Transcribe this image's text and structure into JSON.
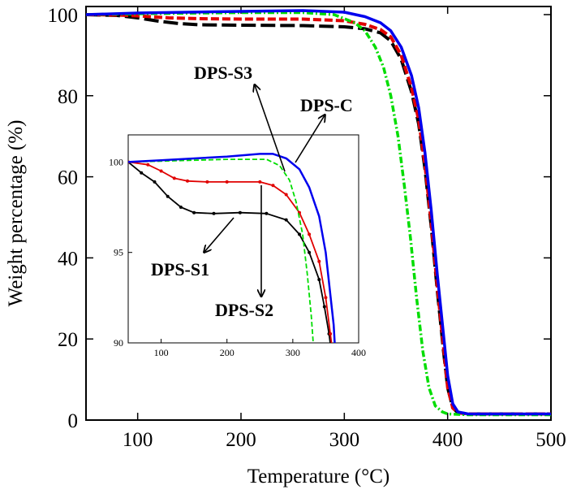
{
  "chart_data": [
    {
      "type": "line",
      "xlabel": "Temperature (°C)",
      "ylabel": "Weight percentage (%)",
      "xlim": [
        50,
        500
      ],
      "ylim": [
        0,
        102
      ],
      "xticks": [
        100,
        200,
        300,
        400,
        500
      ],
      "yticks": [
        0,
        20,
        40,
        60,
        80,
        100
      ],
      "series": [
        {
          "name": "DPS-S1",
          "color": "#000000",
          "x": [
            50,
            80,
            100,
            120,
            140,
            160,
            200,
            260,
            300,
            320,
            335,
            345,
            355,
            365,
            372,
            378,
            384,
            390,
            396,
            400,
            405,
            410,
            420,
            500
          ],
          "y": [
            100,
            99.8,
            99.2,
            98.4,
            97.8,
            97.5,
            97.4,
            97.3,
            97.0,
            96.5,
            95.5,
            93.5,
            89.0,
            81.0,
            73.0,
            62.0,
            48.0,
            32.0,
            17.0,
            8.0,
            3.0,
            1.8,
            1.5,
            1.5
          ]
        },
        {
          "name": "DPS-S2",
          "color": "#e00000",
          "x": [
            50,
            80,
            100,
            130,
            160,
            200,
            260,
            300,
            320,
            335,
            345,
            355,
            365,
            372,
            378,
            384,
            390,
            396,
            400,
            405,
            410,
            420,
            500
          ],
          "y": [
            100,
            99.9,
            99.7,
            99.2,
            99.0,
            98.9,
            98.9,
            98.5,
            97.6,
            96.3,
            94.5,
            90.0,
            82.0,
            74.0,
            63.0,
            49.0,
            33.0,
            18.0,
            8.0,
            3.0,
            1.8,
            1.5,
            1.5
          ]
        },
        {
          "name": "DPS-S3",
          "color": "#00dd00",
          "x": [
            50,
            100,
            200,
            260,
            290,
            310,
            320,
            330,
            338,
            345,
            352,
            358,
            364,
            370,
            376,
            382,
            388,
            395,
            400,
            420,
            500
          ],
          "y": [
            100,
            100.2,
            100.5,
            100.5,
            100.0,
            98.0,
            96.0,
            92.0,
            87.0,
            80.0,
            70.0,
            58.0,
            45.0,
            30.0,
            17.0,
            8.0,
            3.5,
            2.0,
            1.5,
            1.3,
            1.3
          ]
        },
        {
          "name": "DPS-C",
          "color": "#0000ee",
          "x": [
            50,
            100,
            200,
            260,
            300,
            320,
            335,
            345,
            355,
            365,
            372,
            378,
            384,
            390,
            396,
            400,
            405,
            410,
            420,
            500
          ],
          "y": [
            100,
            100.4,
            100.8,
            101.0,
            100.6,
            99.5,
            98.0,
            96.0,
            92.0,
            85.0,
            77.0,
            66.0,
            52.0,
            36.0,
            21.0,
            11.0,
            4.0,
            2.0,
            1.5,
            1.5
          ]
        }
      ]
    },
    {
      "type": "line",
      "xlim": [
        50,
        400
      ],
      "ylim": [
        90,
        101.5
      ],
      "xticks": [
        100,
        200,
        300,
        400
      ],
      "yticks": [
        90,
        95,
        100
      ],
      "series": [
        {
          "name": "DPS-S1",
          "color": "#000000",
          "x": [
            50,
            70,
            90,
            110,
            130,
            150,
            180,
            220,
            260,
            290,
            310,
            325,
            340,
            348,
            355,
            362
          ],
          "y": [
            100,
            99.4,
            98.9,
            98.1,
            97.5,
            97.2,
            97.15,
            97.2,
            97.15,
            96.8,
            96.0,
            95.0,
            93.5,
            92.0,
            90.5,
            88.5
          ]
        },
        {
          "name": "DPS-S2",
          "color": "#e00000",
          "x": [
            50,
            80,
            100,
            120,
            140,
            170,
            200,
            250,
            270,
            290,
            310,
            325,
            340,
            350,
            357,
            364
          ],
          "y": [
            100,
            99.85,
            99.5,
            99.1,
            98.95,
            98.9,
            98.9,
            98.9,
            98.7,
            98.2,
            97.2,
            96.0,
            94.5,
            92.5,
            90.5,
            88.5
          ]
        },
        {
          "name": "DPS-S3",
          "color": "#00dd00",
          "x": [
            50,
            100,
            200,
            260,
            280,
            295,
            305,
            315,
            322,
            328,
            334
          ],
          "y": [
            100,
            100.05,
            100.15,
            100.15,
            99.8,
            99.0,
            97.8,
            96.0,
            93.8,
            91.5,
            88.5
          ]
        },
        {
          "name": "DPS-C",
          "color": "#0000ee",
          "x": [
            50,
            100,
            200,
            250,
            270,
            290,
            310,
            325,
            340,
            350,
            356,
            362,
            366
          ],
          "y": [
            100,
            100.1,
            100.3,
            100.45,
            100.45,
            100.2,
            99.6,
            98.6,
            97.0,
            95.0,
            93.0,
            91.0,
            88.5
          ]
        }
      ]
    }
  ],
  "annotations": [
    "DPS-S3",
    "DPS-C",
    "DPS-S1",
    "DPS-S2"
  ]
}
